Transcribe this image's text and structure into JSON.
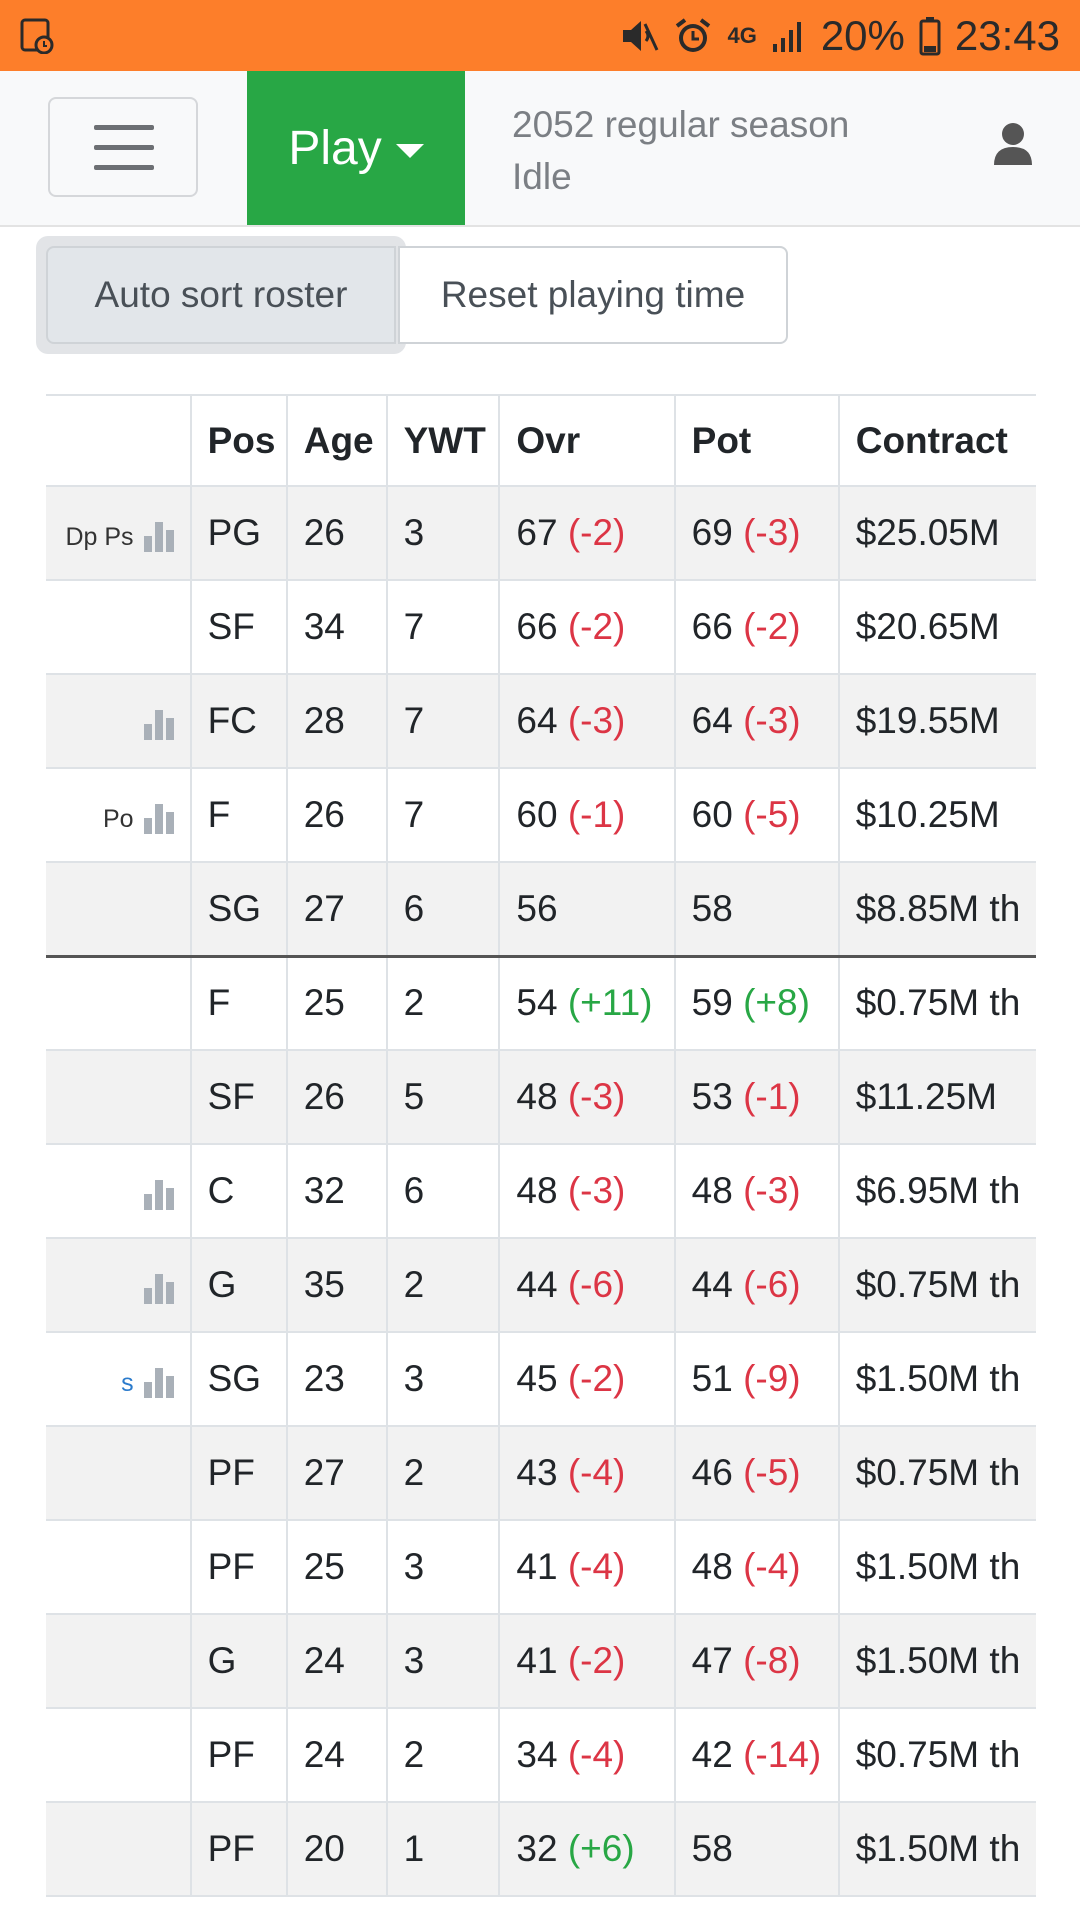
{
  "status_bar": {
    "battery": "20%",
    "time": "23:43",
    "network": "4G",
    "background_color": "#fd7e2a"
  },
  "navbar": {
    "play_label": "Play",
    "season_line1": "2052 regular season",
    "season_line2": "Idle"
  },
  "buttons": {
    "auto_sort": "Auto sort roster",
    "reset_playing_time": "Reset playing time"
  },
  "table": {
    "headers": {
      "pos": "Pos",
      "age": "Age",
      "ywt": "YWT",
      "ovr": "Ovr",
      "pot": "Pot",
      "contract": "Contract"
    },
    "rows": [
      {
        "skills": "Dp  Ps",
        "chart": true,
        "pos": "PG",
        "age": "26",
        "ywt": "3",
        "ovr": "67",
        "ovr_delta": "(-2)",
        "ovr_delta_sign": "neg",
        "pot": "69",
        "pot_delta": "(-3)",
        "pot_delta_sign": "neg",
        "contract": "$25.05M"
      },
      {
        "skills": "",
        "chart": false,
        "pos": "SF",
        "age": "34",
        "ywt": "7",
        "ovr": "66",
        "ovr_delta": "(-2)",
        "ovr_delta_sign": "neg",
        "pot": "66",
        "pot_delta": "(-2)",
        "pot_delta_sign": "neg",
        "contract": "$20.65M"
      },
      {
        "skills": "",
        "chart": true,
        "pos": "FC",
        "age": "28",
        "ywt": "7",
        "ovr": "64",
        "ovr_delta": "(-3)",
        "ovr_delta_sign": "neg",
        "pot": "64",
        "pot_delta": "(-3)",
        "pot_delta_sign": "neg",
        "contract": "$19.55M"
      },
      {
        "skills": "Po",
        "chart": true,
        "pos": "F",
        "age": "26",
        "ywt": "7",
        "ovr": "60",
        "ovr_delta": "(-1)",
        "ovr_delta_sign": "neg",
        "pot": "60",
        "pot_delta": "(-5)",
        "pot_delta_sign": "neg",
        "contract": "$10.25M"
      },
      {
        "skills": "",
        "chart": false,
        "pos": "SG",
        "age": "27",
        "ywt": "6",
        "ovr": "56",
        "ovr_delta": "",
        "ovr_delta_sign": "",
        "pot": "58",
        "pot_delta": "",
        "pot_delta_sign": "",
        "contract": "$8.85M th"
      },
      {
        "skills": "",
        "chart": false,
        "pos": "F",
        "age": "25",
        "ywt": "2",
        "ovr": "54",
        "ovr_delta": "(+11)",
        "ovr_delta_sign": "pos",
        "pot": "59",
        "pot_delta": "(+8)",
        "pot_delta_sign": "pos",
        "contract": "$0.75M th"
      },
      {
        "skills": "",
        "chart": false,
        "pos": "SF",
        "age": "26",
        "ywt": "5",
        "ovr": "48",
        "ovr_delta": "(-3)",
        "ovr_delta_sign": "neg",
        "pot": "53",
        "pot_delta": "(-1)",
        "pot_delta_sign": "neg",
        "contract": "$11.25M"
      },
      {
        "skills": "",
        "chart": true,
        "pos": "C",
        "age": "32",
        "ywt": "6",
        "ovr": "48",
        "ovr_delta": "(-3)",
        "ovr_delta_sign": "neg",
        "pot": "48",
        "pot_delta": "(-3)",
        "pot_delta_sign": "neg",
        "contract": "$6.95M th"
      },
      {
        "skills": "",
        "chart": true,
        "pos": "G",
        "age": "35",
        "ywt": "2",
        "ovr": "44",
        "ovr_delta": "(-6)",
        "ovr_delta_sign": "neg",
        "pot": "44",
        "pot_delta": "(-6)",
        "pot_delta_sign": "neg",
        "contract": "$0.75M th"
      },
      {
        "skills": "s",
        "chart": true,
        "pos": "SG",
        "age": "23",
        "ywt": "3",
        "ovr": "45",
        "ovr_delta": "(-2)",
        "ovr_delta_sign": "neg",
        "pot": "51",
        "pot_delta": "(-9)",
        "pot_delta_sign": "neg",
        "contract": "$1.50M th"
      },
      {
        "skills": "",
        "chart": false,
        "pos": "PF",
        "age": "27",
        "ywt": "2",
        "ovr": "43",
        "ovr_delta": "(-4)",
        "ovr_delta_sign": "neg",
        "pot": "46",
        "pot_delta": "(-5)",
        "pot_delta_sign": "neg",
        "contract": "$0.75M th"
      },
      {
        "skills": "",
        "chart": false,
        "pos": "PF",
        "age": "25",
        "ywt": "3",
        "ovr": "41",
        "ovr_delta": "(-4)",
        "ovr_delta_sign": "neg",
        "pot": "48",
        "pot_delta": "(-4)",
        "pot_delta_sign": "neg",
        "contract": "$1.50M th"
      },
      {
        "skills": "",
        "chart": false,
        "pos": "G",
        "age": "24",
        "ywt": "3",
        "ovr": "41",
        "ovr_delta": "(-2)",
        "ovr_delta_sign": "neg",
        "pot": "47",
        "pot_delta": "(-8)",
        "pot_delta_sign": "neg",
        "contract": "$1.50M th"
      },
      {
        "skills": "",
        "chart": false,
        "pos": "PF",
        "age": "24",
        "ywt": "2",
        "ovr": "34",
        "ovr_delta": "(-4)",
        "ovr_delta_sign": "neg",
        "pot": "42",
        "pot_delta": "(-14)",
        "pot_delta_sign": "neg",
        "contract": "$0.75M th"
      },
      {
        "skills": "",
        "chart": false,
        "pos": "PF",
        "age": "20",
        "ywt": "1",
        "ovr": "32",
        "ovr_delta": "(+6)",
        "ovr_delta_sign": "pos",
        "pot": "58",
        "pot_delta": "",
        "pot_delta_sign": "",
        "contract": "$1.50M th"
      }
    ]
  },
  "colors": {
    "play_button": "#28a745",
    "negative": "#dc3545",
    "positive": "#28a745"
  }
}
